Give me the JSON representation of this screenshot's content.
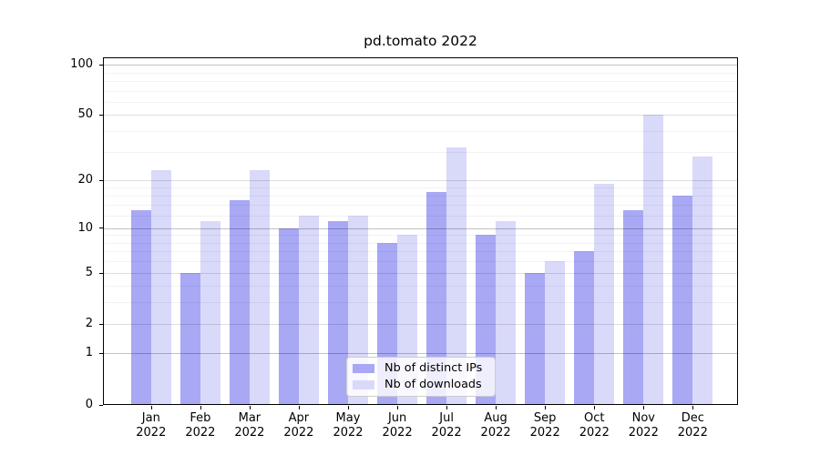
{
  "title": "pd.tomato 2022",
  "legend": {
    "items": [
      {
        "label": "Nb of distinct IPs",
        "color": "#a8a8f5"
      },
      {
        "label": "Nb of downloads",
        "color": "#d9d9fa"
      }
    ]
  },
  "colors": {
    "bar_distinct_ips": "#a8a8f5",
    "bar_downloads": "#d9d9fa",
    "grid_decade": "rgba(0,0,0,0.24)",
    "grid_labeled": "rgba(0,0,0,0.13)",
    "grid_minor": "rgba(0,0,0,0.05)",
    "spine": "#000000",
    "background": "#ffffff"
  },
  "chart_data": {
    "type": "bar",
    "title": "pd.tomato 2022",
    "categories": [
      "Jan",
      "Feb",
      "Mar",
      "Apr",
      "May",
      "Jun",
      "Jul",
      "Aug",
      "Sep",
      "Oct",
      "Nov",
      "Dec"
    ],
    "year_label": "2022",
    "series": [
      {
        "name": "Nb of distinct IPs",
        "color": "#a8a8f5",
        "values": [
          13,
          5,
          15,
          10,
          11,
          8,
          17,
          9,
          5,
          7,
          13,
          16
        ]
      },
      {
        "name": "Nb of downloads",
        "color": "#d9d9fa",
        "values": [
          23,
          11,
          23,
          12,
          12,
          9,
          32,
          11,
          6,
          19,
          50,
          28
        ]
      }
    ],
    "xlabel": "",
    "ylabel": "",
    "yscale": "log1p",
    "ylim": [
      0,
      111
    ],
    "yticks": [
      0,
      1,
      2,
      5,
      10,
      20,
      50,
      100
    ],
    "decade_yticks": [
      1,
      10,
      100
    ],
    "minor_yticks": [
      3,
      4,
      6,
      7,
      8,
      9,
      12,
      14,
      16,
      18,
      30,
      40,
      60,
      70,
      80,
      90
    ],
    "grid": "horizontal",
    "legend_position": "lower center"
  }
}
